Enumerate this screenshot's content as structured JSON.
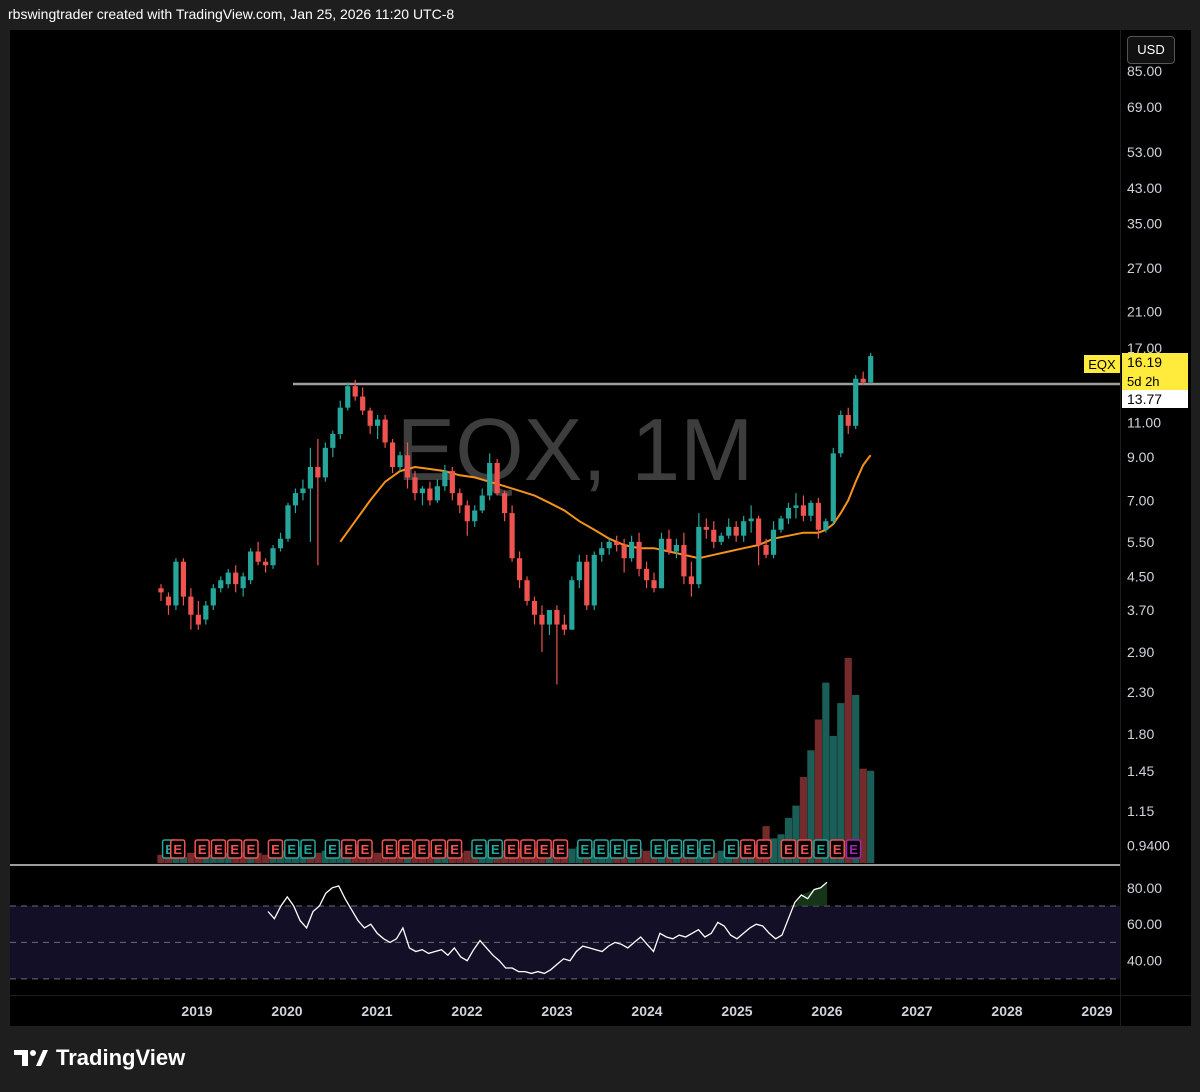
{
  "header": {
    "title": "rbswingtrader created with TradingView.com, Jan 25, 2026 11:20 UTC-8"
  },
  "watermark": "EQX, 1M",
  "currency_button": "USD",
  "price_tag": {
    "symbol": "EQX",
    "last": "16.19",
    "countdown": "5d 2h",
    "level": "13.77"
  },
  "footer": {
    "brand": "TradingView"
  },
  "colors": {
    "up": "#26a69a",
    "down": "#ef5350",
    "ma": "#f7931a",
    "rsi_line": "#ffffff",
    "tag_bg": "#ffeb3b",
    "earnings_future": "#9c27b0",
    "hline": "#9e9e9e"
  },
  "chart_data": {
    "type": "candlestick",
    "symbol": "EQX",
    "interval": "1M",
    "y_scale": "log",
    "price_ticks": [
      0.94,
      1.15,
      1.45,
      1.8,
      2.3,
      2.9,
      3.7,
      4.5,
      5.5,
      7.0,
      9.0,
      11.0,
      13.77,
      17.0,
      21.0,
      27.0,
      35.0,
      43.0,
      53.0,
      69.0,
      85.0
    ],
    "price_tick_labels": [
      "0.9400",
      "1.15",
      "1.45",
      "1.80",
      "2.30",
      "2.90",
      "3.70",
      "4.50",
      "5.50",
      "7.00",
      "9.00",
      "11.00",
      "",
      "17.00",
      "21.00",
      "27.00",
      "35.00",
      "43.00",
      "53.00",
      "69.00",
      "85.00"
    ],
    "x_labels": [
      "2019",
      "2020",
      "2021",
      "2022",
      "2023",
      "2024",
      "2025",
      "2026",
      "2027",
      "2028",
      "2029"
    ],
    "x_start": "2018-03",
    "candles": [
      [
        4.2,
        4.3,
        4.1,
        3.9
      ],
      [
        4.0,
        4.1,
        3.8,
        3.6
      ],
      [
        3.8,
        5.0,
        4.9,
        3.7
      ],
      [
        4.9,
        5.0,
        4.0,
        3.8
      ],
      [
        4.0,
        4.2,
        3.6,
        3.3
      ],
      [
        3.6,
        3.9,
        3.4,
        3.3
      ],
      [
        3.5,
        3.9,
        3.8,
        3.4
      ],
      [
        3.8,
        4.3,
        4.2,
        3.7
      ],
      [
        4.2,
        4.5,
        4.4,
        4.1
      ],
      [
        4.3,
        4.7,
        4.6,
        4.2
      ],
      [
        4.6,
        4.8,
        4.3,
        4.1
      ],
      [
        4.2,
        4.6,
        4.5,
        4.0
      ],
      [
        4.4,
        5.3,
        5.2,
        4.3
      ],
      [
        5.2,
        5.5,
        4.9,
        4.8
      ],
      [
        4.9,
        5.0,
        4.8,
        4.6
      ],
      [
        4.8,
        5.4,
        5.3,
        4.7
      ],
      [
        5.3,
        5.8,
        5.6,
        5.2
      ],
      [
        5.6,
        6.9,
        6.8,
        5.5
      ],
      [
        6.8,
        7.5,
        7.3,
        6.5
      ],
      [
        7.3,
        7.9,
        7.5,
        7.0
      ],
      [
        7.5,
        9.5,
        8.5,
        5.5
      ],
      [
        8.5,
        10.0,
        8.0,
        4.8
      ],
      [
        8.0,
        9.8,
        9.5,
        7.8
      ],
      [
        9.5,
        10.5,
        10.3,
        9.0
      ],
      [
        10.3,
        12.5,
        12.0,
        10.0
      ],
      [
        12.0,
        13.9,
        13.6,
        11.8
      ],
      [
        13.6,
        14.1,
        12.8,
        12.5
      ],
      [
        12.8,
        13.5,
        11.8,
        11.5
      ],
      [
        11.8,
        12.0,
        10.8,
        10.3
      ],
      [
        10.8,
        11.5,
        11.2,
        10.0
      ],
      [
        11.2,
        11.5,
        9.8,
        9.5
      ],
      [
        9.8,
        10.0,
        8.5,
        8.2
      ],
      [
        8.5,
        9.3,
        9.1,
        8.3
      ],
      [
        9.1,
        9.8,
        8.0,
        7.5
      ],
      [
        8.0,
        8.3,
        7.3,
        7.0
      ],
      [
        7.3,
        7.6,
        7.5,
        6.8
      ],
      [
        7.5,
        7.8,
        7.0,
        6.8
      ],
      [
        7.0,
        7.9,
        7.6,
        6.9
      ],
      [
        7.6,
        8.6,
        8.3,
        7.4
      ],
      [
        8.3,
        8.5,
        7.3,
        7.0
      ],
      [
        7.3,
        7.5,
        6.8,
        6.5
      ],
      [
        6.8,
        7.0,
        6.2,
        5.7
      ],
      [
        6.2,
        6.8,
        6.6,
        6.0
      ],
      [
        6.6,
        7.5,
        7.2,
        6.5
      ],
      [
        7.2,
        9.2,
        8.7,
        7.0
      ],
      [
        8.7,
        8.9,
        7.3,
        7.2
      ],
      [
        7.3,
        7.4,
        6.5,
        6.2
      ],
      [
        6.5,
        6.8,
        5.0,
        4.9
      ],
      [
        5.0,
        5.2,
        4.4,
        4.2
      ],
      [
        4.4,
        4.5,
        3.9,
        3.8
      ],
      [
        3.9,
        4.0,
        3.6,
        3.4
      ],
      [
        3.6,
        3.8,
        3.4,
        2.9
      ],
      [
        3.4,
        3.6,
        3.7,
        3.2
      ],
      [
        3.7,
        3.8,
        3.4,
        2.4
      ],
      [
        3.4,
        3.6,
        3.3,
        3.2
      ],
      [
        3.3,
        4.5,
        4.4,
        3.3
      ],
      [
        4.4,
        5.1,
        4.9,
        4.2
      ],
      [
        4.9,
        5.1,
        3.8,
        3.7
      ],
      [
        3.8,
        5.2,
        5.1,
        3.7
      ],
      [
        5.1,
        5.5,
        5.3,
        4.9
      ],
      [
        5.3,
        5.6,
        5.5,
        5.1
      ],
      [
        5.5,
        5.7,
        5.4,
        5.2
      ],
      [
        5.4,
        5.6,
        5.0,
        4.6
      ],
      [
        5.0,
        5.7,
        5.5,
        4.9
      ],
      [
        5.5,
        5.8,
        4.7,
        4.5
      ],
      [
        4.7,
        4.9,
        4.4,
        4.2
      ],
      [
        4.4,
        4.6,
        4.2,
        4.1
      ],
      [
        4.2,
        5.8,
        5.6,
        4.2
      ],
      [
        5.6,
        5.9,
        5.2,
        5.1
      ],
      [
        5.2,
        5.6,
        5.4,
        5.0
      ],
      [
        5.4,
        5.8,
        4.5,
        4.3
      ],
      [
        4.5,
        4.9,
        4.3,
        4.0
      ],
      [
        4.3,
        6.5,
        6.0,
        4.2
      ],
      [
        6.0,
        6.3,
        5.9,
        5.6
      ],
      [
        5.9,
        6.2,
        5.5,
        5.3
      ],
      [
        5.5,
        5.8,
        5.7,
        5.4
      ],
      [
        5.7,
        6.3,
        6.0,
        5.6
      ],
      [
        6.0,
        6.2,
        5.7,
        5.5
      ],
      [
        5.7,
        6.4,
        6.2,
        5.5
      ],
      [
        6.2,
        6.8,
        6.3,
        5.8
      ],
      [
        6.3,
        6.4,
        5.4,
        4.8
      ],
      [
        5.4,
        5.6,
        5.1,
        5.0
      ],
      [
        5.1,
        6.2,
        5.9,
        5.0
      ],
      [
        5.9,
        6.4,
        6.3,
        5.8
      ],
      [
        6.3,
        6.9,
        6.7,
        6.1
      ],
      [
        6.7,
        7.3,
        6.8,
        6.3
      ],
      [
        6.8,
        7.2,
        6.4,
        6.2
      ],
      [
        6.4,
        7.0,
        6.9,
        6.2
      ],
      [
        6.9,
        7.1,
        5.9,
        5.6
      ],
      [
        5.9,
        6.3,
        6.2,
        5.8
      ],
      [
        6.2,
        9.5,
        9.2,
        6.1
      ],
      [
        9.2,
        11.8,
        11.5,
        9.0
      ],
      [
        11.5,
        12.0,
        10.8,
        10.3
      ],
      [
        10.8,
        14.5,
        14.2,
        10.6
      ],
      [
        14.2,
        14.8,
        13.9,
        13.7
      ],
      [
        13.9,
        16.5,
        16.2,
        13.8
      ]
    ],
    "ma": [
      [
        24,
        5.5
      ],
      [
        26,
        6.2
      ],
      [
        28,
        7.0
      ],
      [
        30,
        7.8
      ],
      [
        32,
        8.3
      ],
      [
        34,
        8.5
      ],
      [
        36,
        8.4
      ],
      [
        38,
        8.3
      ],
      [
        40,
        8.1
      ],
      [
        42,
        8.0
      ],
      [
        44,
        7.8
      ],
      [
        46,
        7.6
      ],
      [
        48,
        7.4
      ],
      [
        50,
        7.2
      ],
      [
        52,
        6.9
      ],
      [
        54,
        6.6
      ],
      [
        56,
        6.2
      ],
      [
        58,
        5.9
      ],
      [
        60,
        5.6
      ],
      [
        62,
        5.4
      ],
      [
        64,
        5.3
      ],
      [
        66,
        5.3
      ],
      [
        68,
        5.2
      ],
      [
        70,
        5.1
      ],
      [
        72,
        5.0
      ],
      [
        74,
        5.1
      ],
      [
        76,
        5.2
      ],
      [
        78,
        5.3
      ],
      [
        80,
        5.4
      ],
      [
        82,
        5.6
      ],
      [
        84,
        5.7
      ],
      [
        86,
        5.8
      ],
      [
        88,
        5.8
      ],
      [
        89,
        5.9
      ],
      [
        90,
        6.1
      ],
      [
        91,
        6.5
      ],
      [
        92,
        7.0
      ],
      [
        93,
        7.8
      ],
      [
        94,
        8.6
      ],
      [
        95,
        9.1
      ]
    ],
    "volume": [
      0.04,
      0.05,
      0.04,
      0.03,
      0.05,
      0.04,
      0.03,
      0.04,
      0.03,
      0.05,
      0.04,
      0.05,
      0.06,
      0.05,
      0.04,
      0.05,
      0.06,
      0.07,
      0.06,
      0.08,
      0.07,
      0.05,
      0.06,
      0.06,
      0.07,
      0.08,
      0.09,
      0.07,
      0.06,
      0.05,
      0.06,
      0.07,
      0.06,
      0.07,
      0.05,
      0.06,
      0.05,
      0.06,
      0.07,
      0.06,
      0.05,
      0.06,
      0.05,
      0.07,
      0.09,
      0.08,
      0.06,
      0.08,
      0.07,
      0.08,
      0.07,
      0.08,
      0.07,
      0.08,
      0.06,
      0.07,
      0.08,
      0.06,
      0.07,
      0.06,
      0.05,
      0.06,
      0.07,
      0.06,
      0.07,
      0.06,
      0.05,
      0.06,
      0.07,
      0.06,
      0.05,
      0.06,
      0.07,
      0.06,
      0.05,
      0.06,
      0.07,
      0.08,
      0.07,
      0.08,
      0.09,
      0.18,
      0.12,
      0.14,
      0.22,
      0.28,
      0.42,
      0.55,
      0.7,
      0.88,
      0.62,
      0.78,
      1.0,
      0.82,
      0.46,
      0.45
    ],
    "volume_colors_up": [
      2,
      3,
      6,
      7,
      8,
      9,
      12,
      15,
      16,
      17,
      18,
      19,
      22,
      23,
      24,
      25,
      33,
      37,
      38,
      43,
      44,
      52,
      55,
      56,
      58,
      59,
      60,
      63,
      67,
      69,
      72,
      73,
      75,
      76,
      78,
      79,
      82,
      83,
      84,
      85,
      87,
      89,
      90,
      91,
      93,
      95
    ],
    "earnings": [
      {
        "i": 0,
        "c": "up"
      },
      {
        "i": 1,
        "c": "down"
      },
      {
        "i": 4,
        "c": "down"
      },
      {
        "i": 6,
        "c": "down"
      },
      {
        "i": 8,
        "c": "down"
      },
      {
        "i": 10,
        "c": "down"
      },
      {
        "i": 13,
        "c": "down"
      },
      {
        "i": 15,
        "c": "up"
      },
      {
        "i": 17,
        "c": "up"
      },
      {
        "i": 20,
        "c": "up"
      },
      {
        "i": 22,
        "c": "down"
      },
      {
        "i": 24,
        "c": "down"
      },
      {
        "i": 27,
        "c": "down"
      },
      {
        "i": 29,
        "c": "down"
      },
      {
        "i": 31,
        "c": "down"
      },
      {
        "i": 33,
        "c": "down"
      },
      {
        "i": 35,
        "c": "down"
      },
      {
        "i": 38,
        "c": "up"
      },
      {
        "i": 40,
        "c": "up"
      },
      {
        "i": 42,
        "c": "down"
      },
      {
        "i": 44,
        "c": "down"
      },
      {
        "i": 46,
        "c": "down"
      },
      {
        "i": 48,
        "c": "down"
      },
      {
        "i": 51,
        "c": "up"
      },
      {
        "i": 53,
        "c": "up"
      },
      {
        "i": 55,
        "c": "up"
      },
      {
        "i": 57,
        "c": "up"
      },
      {
        "i": 60,
        "c": "up"
      },
      {
        "i": 62,
        "c": "up"
      },
      {
        "i": 64,
        "c": "up"
      },
      {
        "i": 66,
        "c": "up"
      },
      {
        "i": 69,
        "c": "up"
      },
      {
        "i": 71,
        "c": "down"
      },
      {
        "i": 73,
        "c": "down"
      },
      {
        "i": 76,
        "c": "down"
      },
      {
        "i": 78,
        "c": "down"
      },
      {
        "i": 80,
        "c": "up"
      },
      {
        "i": 82,
        "c": "down"
      },
      {
        "i": 84,
        "c": "future"
      }
    ],
    "hline": {
      "value": 13.77
    },
    "rsi": {
      "ticks": [
        40,
        60,
        80
      ],
      "tick_labels": [
        "40.00",
        "60.00",
        "80.00"
      ],
      "upper_band": 70,
      "lower_band": 30,
      "mid": 50,
      "values": [
        [
          22,
          67
        ],
        [
          23,
          63
        ],
        [
          24,
          70
        ],
        [
          25,
          75
        ],
        [
          26,
          70
        ],
        [
          27,
          62
        ],
        [
          28,
          58
        ],
        [
          29,
          67
        ],
        [
          30,
          70
        ],
        [
          31,
          77
        ],
        [
          32,
          80
        ],
        [
          33,
          81
        ],
        [
          34,
          74
        ],
        [
          35,
          68
        ],
        [
          36,
          62
        ],
        [
          37,
          58
        ],
        [
          38,
          60
        ],
        [
          39,
          55
        ],
        [
          40,
          52
        ],
        [
          41,
          50
        ],
        [
          42,
          52
        ],
        [
          43,
          58
        ],
        [
          44,
          47
        ],
        [
          45,
          45
        ],
        [
          46,
          46
        ],
        [
          47,
          44
        ],
        [
          48,
          45
        ],
        [
          49,
          46
        ],
        [
          50,
          43
        ],
        [
          51,
          47
        ],
        [
          52,
          42
        ],
        [
          53,
          40
        ],
        [
          54,
          46
        ],
        [
          55,
          51
        ],
        [
          56,
          47
        ],
        [
          57,
          43
        ],
        [
          58,
          40
        ],
        [
          59,
          36
        ],
        [
          60,
          36
        ],
        [
          61,
          34
        ],
        [
          62,
          34
        ],
        [
          63,
          33
        ],
        [
          64,
          34
        ],
        [
          65,
          33
        ],
        [
          66,
          35
        ],
        [
          67,
          38
        ],
        [
          68,
          41
        ],
        [
          69,
          40
        ],
        [
          70,
          45
        ],
        [
          71,
          48
        ],
        [
          72,
          47
        ],
        [
          73,
          46
        ],
        [
          74,
          45
        ],
        [
          75,
          48
        ],
        [
          76,
          50
        ],
        [
          77,
          49
        ],
        [
          78,
          47
        ],
        [
          79,
          50
        ],
        [
          80,
          53
        ],
        [
          81,
          49
        ],
        [
          82,
          45
        ],
        [
          83,
          55
        ],
        [
          84,
          53
        ],
        [
          85,
          52
        ],
        [
          86,
          54
        ],
        [
          87,
          53
        ],
        [
          88,
          55
        ],
        [
          89,
          57
        ],
        [
          90,
          53
        ],
        [
          91,
          55
        ],
        [
          92,
          61
        ],
        [
          93,
          59
        ],
        [
          94,
          54
        ],
        [
          95,
          52
        ],
        [
          96,
          55
        ],
        [
          97,
          58
        ],
        [
          98,
          60
        ],
        [
          99,
          59
        ],
        [
          100,
          55
        ],
        [
          101,
          52
        ],
        [
          102,
          54
        ],
        [
          103,
          63
        ],
        [
          104,
          72
        ],
        [
          105,
          76
        ],
        [
          106,
          74
        ],
        [
          107,
          79
        ],
        [
          108,
          80
        ],
        [
          109,
          83
        ]
      ]
    }
  }
}
